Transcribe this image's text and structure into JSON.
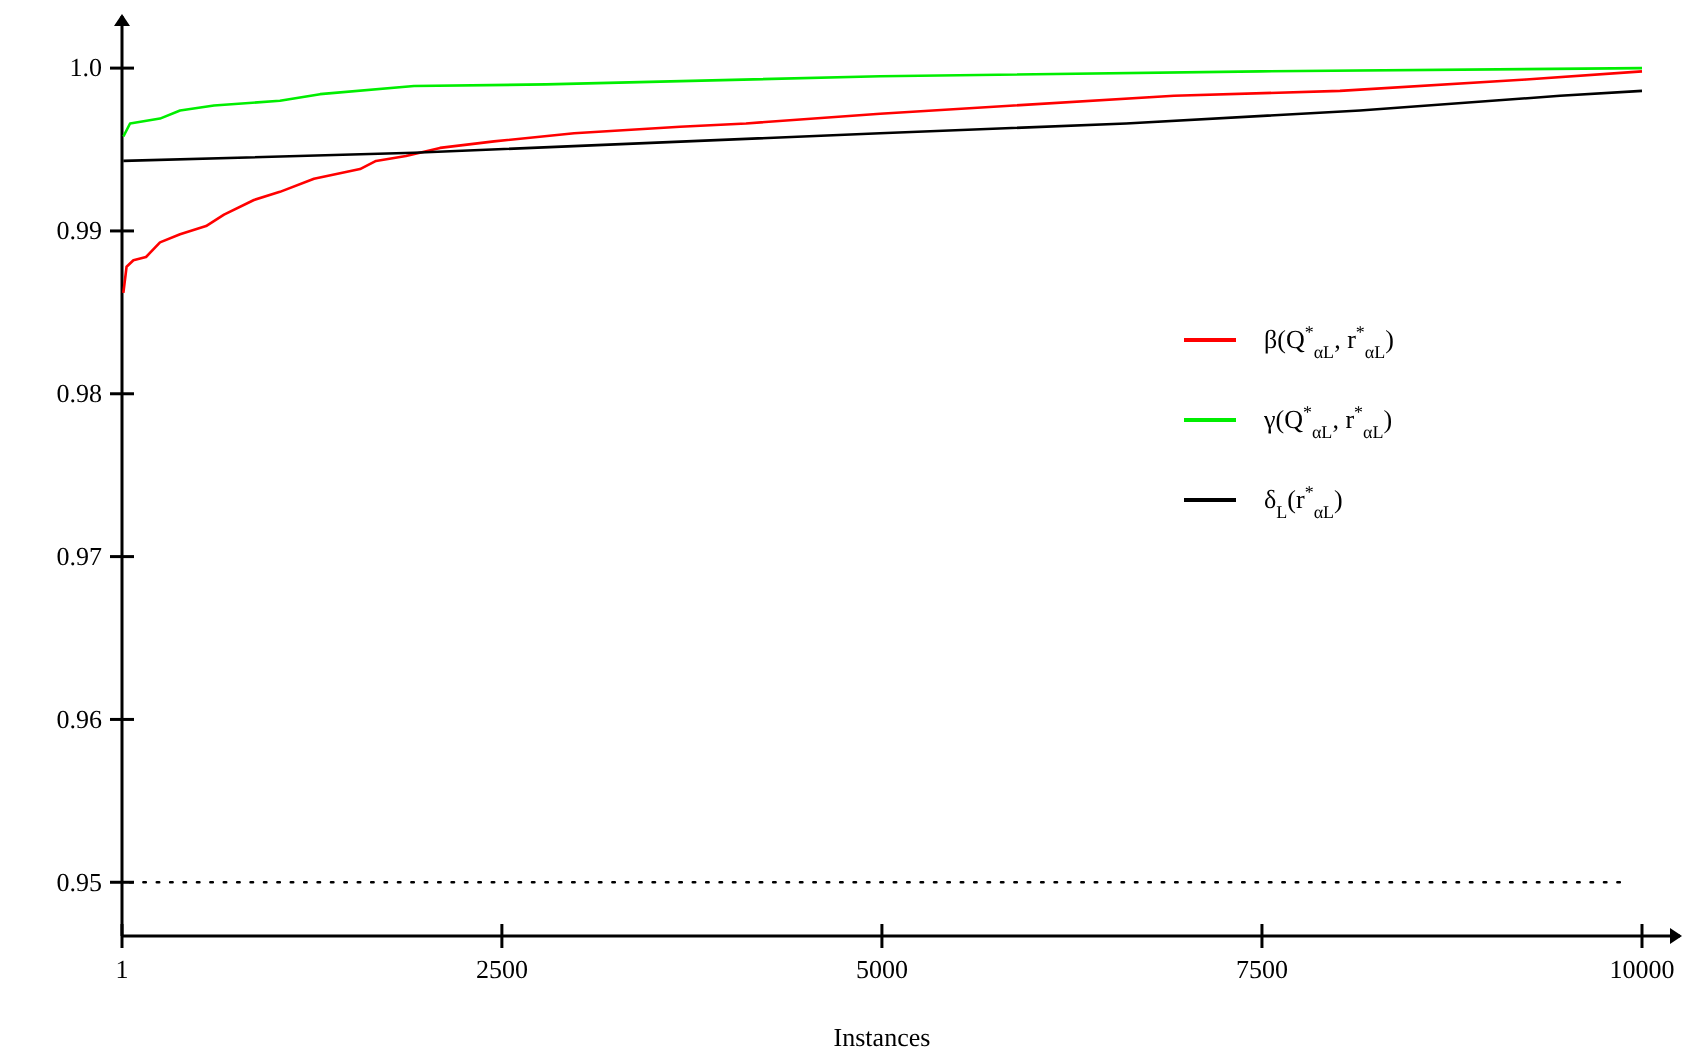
{
  "chart_data": {
    "type": "line",
    "xlabel": "Instances",
    "xlim": [
      1,
      10250
    ],
    "ylim": [
      0.9467,
      1.0032
    ],
    "xticks": [
      1,
      2500,
      5000,
      7500,
      10000
    ],
    "yticks": [
      0.95,
      0.96,
      0.97,
      0.98,
      0.99,
      {
        "value": 1.0,
        "label": "1.0"
      }
    ],
    "grid": false,
    "legend": "right",
    "marker": "none",
    "line_style": "solid",
    "ref_lines": [
      {
        "axis": "y",
        "value": 0.95,
        "label": null,
        "color": "#000000",
        "line_style": "dotted"
      }
    ],
    "series": [
      {
        "name": "β(Q$^{*}$$_{αL}$, r$^{*}$$_{αL}$)",
        "color": "#ff0000",
        "x": [
          10,
          31,
          76,
          159,
          251,
          383,
          554,
          672,
          869,
          1040,
          1264,
          1567,
          1672,
          1869,
          2093,
          2448,
          2975,
          3672,
          4106,
          4988,
          6922,
          8013,
          9237,
          10000
        ],
        "values": [
          0.9862,
          0.9878,
          0.9882,
          0.9884,
          0.9893,
          0.9898,
          0.9903,
          0.991,
          0.9919,
          0.9924,
          0.9932,
          0.9938,
          0.9943,
          0.9946,
          0.9951,
          0.9955,
          0.996,
          0.9964,
          0.9966,
          0.9972,
          0.9983,
          0.9986,
          0.9993,
          0.9998
        ]
      },
      {
        "name": "γ(Q$^{*}$$_{αL}$, r$^{*}$$_{αL}$)",
        "color": "#00ee00",
        "x": [
          10,
          54,
          251,
          383,
          606,
          1040,
          1304,
          1922,
          2790,
          4988,
          7487,
          10000
        ],
        "values": [
          0.9958,
          0.9966,
          0.9969,
          0.9974,
          0.9977,
          0.998,
          0.9984,
          0.9989,
          0.999,
          0.9995,
          0.9998,
          1.0
        ]
      },
      {
        "name": "δ$_{L}$(r$^{*}$$_{αL}$)",
        "color": "#000000",
        "x": [
          10,
          1922,
          4988,
          6606,
          8145,
          9461,
          10000
        ],
        "values": [
          0.9943,
          0.9948,
          0.996,
          0.9966,
          0.9974,
          0.9983,
          0.9986
        ]
      }
    ]
  }
}
